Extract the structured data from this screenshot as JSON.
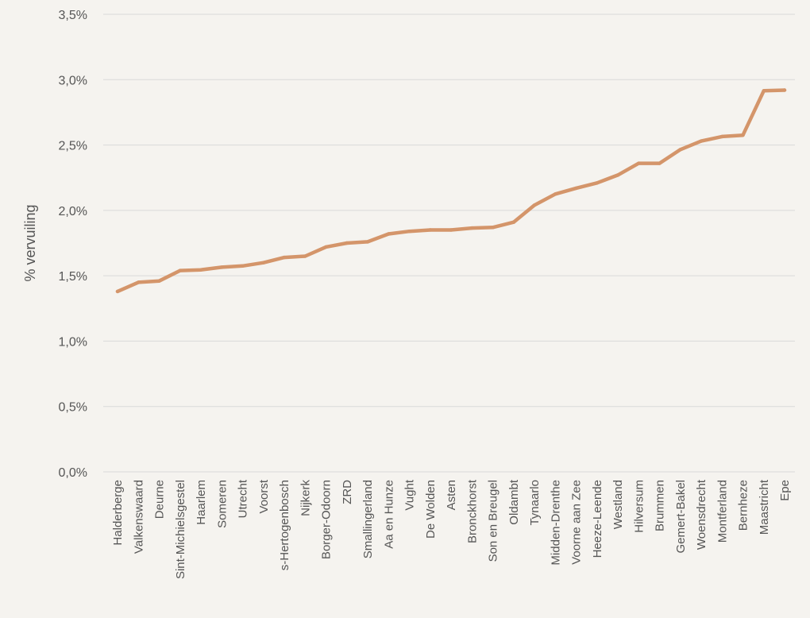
{
  "chart_data": {
    "type": "line",
    "title": "",
    "xlabel": "",
    "ylabel": "% vervuiling",
    "ylim": [
      0,
      3.5
    ],
    "yticks": [
      {
        "value": 0.0,
        "label": "0,0%"
      },
      {
        "value": 0.5,
        "label": "0,5%"
      },
      {
        "value": 1.0,
        "label": "1,0%"
      },
      {
        "value": 1.5,
        "label": "1,5%"
      },
      {
        "value": 2.0,
        "label": "2,0%"
      },
      {
        "value": 2.5,
        "label": "2,5%"
      },
      {
        "value": 3.0,
        "label": "3,0%"
      },
      {
        "value": 3.5,
        "label": "3,5%"
      }
    ],
    "grid": true,
    "line_color": "#d4956a",
    "grid_color": "#d9d9d9",
    "categories": [
      "Halderberge",
      "Valkenswaard",
      "Deurne",
      "Sint-Michielsgestel",
      "Haarlem",
      "Someren",
      "Utrecht",
      "Voorst",
      "s-Hertogenbosch",
      "Nijkerk",
      "Borger-Odoorn",
      "ZRD",
      "Smallingerland",
      "Aa en Hunze",
      "Vught",
      "De Wolden",
      "Asten",
      "Bronckhorst",
      "Son en Breugel",
      "Oldambt",
      "Tynaarlo",
      "Midden-Drenthe",
      "Voorne aan Zee",
      "Heeze-Leende",
      "Westland",
      "Hilversum",
      "Brummen",
      "Gemert-Bakel",
      "Woensdrecht",
      "Montferland",
      "Bernheze",
      "Maastricht",
      "Epe"
    ],
    "series": [
      {
        "values": [
          1.38,
          1.45,
          1.46,
          1.54,
          1.545,
          1.565,
          1.575,
          1.6,
          1.64,
          1.65,
          1.72,
          1.75,
          1.76,
          1.82,
          1.84,
          1.85,
          1.85,
          1.865,
          1.87,
          1.91,
          2.04,
          2.125,
          2.17,
          2.21,
          2.27,
          2.36,
          2.36,
          2.465,
          2.53,
          2.565,
          2.575,
          2.915,
          2.92
        ]
      }
    ]
  }
}
